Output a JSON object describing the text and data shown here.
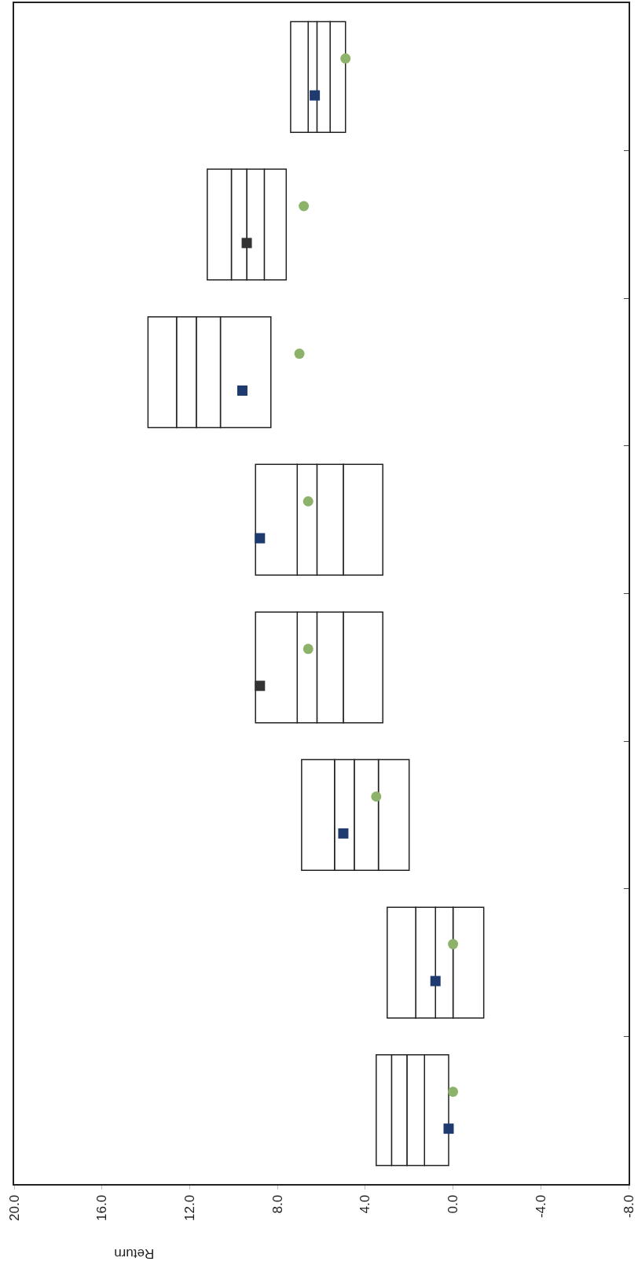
{
  "chart_data": {
    "type": "bar",
    "orientation": "horizontal",
    "xlabel": "Return",
    "categories": [
      null,
      null,
      null,
      null,
      null,
      null,
      null,
      null
    ],
    "series": [
      {
        "color": "#ffffff",
        "base": [
          4.9,
          7.6,
          8.3,
          3.2,
          3.2,
          2.0,
          -1.4,
          0.2
        ],
        "values": [
          0.7,
          1.0,
          2.3,
          1.8,
          1.8,
          1.4,
          1.4,
          1.1
        ]
      },
      {
        "color": "#ffffff",
        "base": [
          5.6,
          8.6,
          10.6,
          5.0,
          5.0,
          3.4,
          0.0,
          1.3
        ],
        "values": [
          0.6,
          0.8,
          1.1,
          1.2,
          1.2,
          1.1,
          0.8,
          0.8
        ]
      },
      {
        "color": "#ffffff",
        "base": [
          6.2,
          9.4,
          11.7,
          6.2,
          6.2,
          4.5,
          0.8,
          2.1
        ],
        "values": [
          0.4,
          0.7,
          0.9,
          0.9,
          0.9,
          0.9,
          0.9,
          0.7
        ]
      },
      {
        "color": "#ffffff",
        "base": [
          6.6,
          10.1,
          12.6,
          7.1,
          7.1,
          5.4,
          1.7,
          2.8
        ],
        "values": [
          0.8,
          1.1,
          1.3,
          1.9,
          1.9,
          1.5,
          1.3,
          0.7
        ]
      },
      {
        "type": "scatter",
        "marker": "circle",
        "color": "#8db36a",
        "values": [
          4.9,
          6.8,
          7.0,
          6.6,
          6.6,
          3.5,
          0.0,
          0.0
        ]
      },
      {
        "type": "scatter",
        "marker": "square",
        "color": "#1f3a6e",
        "colors": [
          "#1f3a6e",
          "#333333",
          "#1f3a6e",
          "#1f3a6e",
          "#333333",
          "#1f3a6e",
          "#1f3a6e",
          "#1f3a6e"
        ],
        "values": [
          6.3,
          9.4,
          9.6,
          8.8,
          8.8,
          5.0,
          0.8,
          0.2
        ]
      }
    ],
    "xlim": [
      20,
      -8
    ],
    "xticks": [
      {
        "value": 20,
        "label": "20.0"
      },
      {
        "value": 16,
        "label": "16.0"
      },
      {
        "value": 12,
        "label": "12.0"
      },
      {
        "value": 8,
        "label": "8.0"
      },
      {
        "value": 4,
        "label": "4.0"
      },
      {
        "value": 0,
        "label": "0.0"
      },
      {
        "value": -4,
        "label": "-4.0"
      },
      {
        "value": -8,
        "label": "-8.0"
      }
    ],
    "tick_labels": "x"
  }
}
